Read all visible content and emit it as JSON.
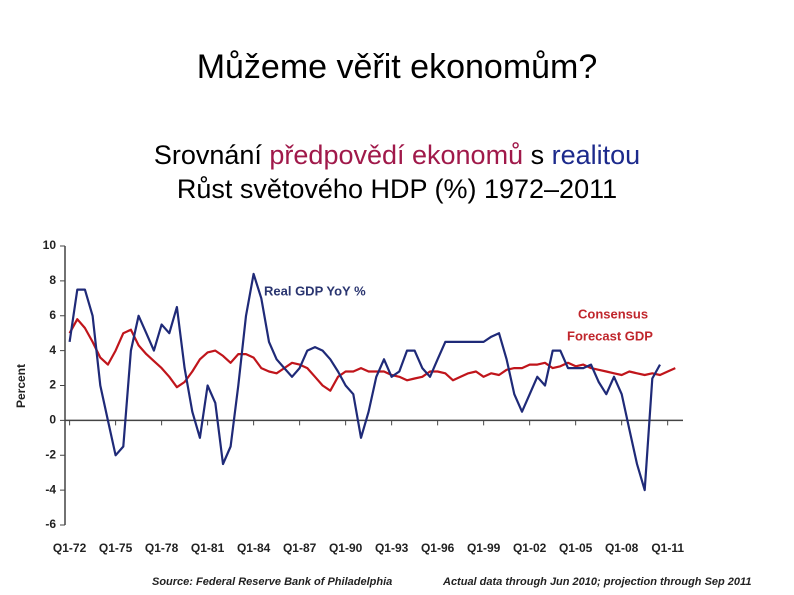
{
  "slide": {
    "title": "Můžeme věřit ekonomům?",
    "subtitle_parts": [
      "Srovnání",
      "předpovědí ekonomů",
      "s",
      "realitou"
    ],
    "subtitle_line2": "Růst světového HDP (%) 1972–2011"
  },
  "chart_data": {
    "type": "line",
    "y_label": "Percent",
    "annotations": [
      "Real GDP YoY %",
      "Consensus",
      "Forecast GDP"
    ],
    "source": "Source: Federal Reserve Bank of Philadelphia",
    "note": "Actual data through Jun 2010; projection through Sep 2011",
    "xlim": [
      1971.7,
      2012.0
    ],
    "ylim": [
      -6,
      10
    ],
    "yticks": [
      -6,
      -4,
      -2,
      0,
      2,
      4,
      6,
      8,
      10
    ],
    "xticks": [
      {
        "value": 1972,
        "label": "Q1-72"
      },
      {
        "value": 1975,
        "label": "Q1-75"
      },
      {
        "value": 1978,
        "label": "Q1-78"
      },
      {
        "value": 1981,
        "label": "Q1-81"
      },
      {
        "value": 1984,
        "label": "Q1-84"
      },
      {
        "value": 1987,
        "label": "Q1-87"
      },
      {
        "value": 1990,
        "label": "Q1-90"
      },
      {
        "value": 1993,
        "label": "Q1-93"
      },
      {
        "value": 1996,
        "label": "Q1-96"
      },
      {
        "value": 1999,
        "label": "Q1-99"
      },
      {
        "value": 2002,
        "label": "Q1-02"
      },
      {
        "value": 2005,
        "label": "Q1-05"
      },
      {
        "value": 2008,
        "label": "Q1-08"
      },
      {
        "value": 2011,
        "label": "Q1-11"
      }
    ],
    "x": [
      1972,
      1972.5,
      1973,
      1973.5,
      1974,
      1974.5,
      1975,
      1975.5,
      1976,
      1976.5,
      1977,
      1977.5,
      1978,
      1978.5,
      1979,
      1979.5,
      1980,
      1980.5,
      1981,
      1981.5,
      1982,
      1982.5,
      1983,
      1983.5,
      1984,
      1984.5,
      1985,
      1985.5,
      1986,
      1986.5,
      1987,
      1987.5,
      1988,
      1988.5,
      1989,
      1989.5,
      1990,
      1990.5,
      1991,
      1991.5,
      1992,
      1992.5,
      1993,
      1993.5,
      1994,
      1994.5,
      1995,
      1995.5,
      1996,
      1996.5,
      1997,
      1997.5,
      1998,
      1998.5,
      1999,
      1999.5,
      2000,
      2000.5,
      2001,
      2001.5,
      2002,
      2002.5,
      2003,
      2003.5,
      2004,
      2004.5,
      2005,
      2005.5,
      2006,
      2006.5,
      2007,
      2007.5,
      2008,
      2008.5,
      2009,
      2009.5,
      2010,
      2010.5,
      2011,
      2011.5
    ],
    "series": [
      {
        "color": "#1f2a78",
        "values": [
          4.5,
          7.5,
          7.5,
          6,
          2,
          0,
          -2,
          -1.5,
          4,
          6,
          5,
          4,
          5.5,
          5,
          6.5,
          3,
          0.5,
          -1,
          2,
          1,
          -2.5,
          -1.5,
          2,
          6,
          8.4,
          7,
          4.5,
          3.5,
          3,
          2.5,
          3,
          4,
          4.2,
          4,
          3.5,
          2.8,
          2,
          1.5,
          -1,
          0.5,
          2.5,
          3.5,
          2.5,
          2.8,
          4,
          4,
          3,
          2.5,
          3.5,
          4.5,
          4.5,
          4.5,
          4.5,
          4.5,
          4.5,
          4.8,
          5,
          3.5,
          1.5,
          0.5,
          1.5,
          2.5,
          2,
          4,
          4,
          3,
          3,
          3,
          3.2,
          2.2,
          1.5,
          2.5,
          1.5,
          -0.5,
          -2.5,
          -4,
          2.4,
          3.2,
          null,
          null
        ]
      },
      {
        "color": "#c0151b",
        "values": [
          5,
          5.8,
          5.3,
          4.5,
          3.6,
          3.2,
          4,
          5,
          5.2,
          4.3,
          3.8,
          3.4,
          3,
          2.5,
          1.9,
          2.2,
          2.8,
          3.5,
          3.9,
          4,
          3.7,
          3.3,
          3.8,
          3.8,
          3.6,
          3,
          2.8,
          2.7,
          3,
          3.3,
          3.2,
          3,
          2.5,
          2,
          1.7,
          2.5,
          2.8,
          2.8,
          3,
          2.8,
          2.8,
          2.8,
          2.6,
          2.5,
          2.3,
          2.4,
          2.5,
          2.8,
          2.8,
          2.7,
          2.3,
          2.5,
          2.7,
          2.8,
          2.5,
          2.7,
          2.6,
          2.9,
          3,
          3,
          3.2,
          3.2,
          3.3,
          3,
          3.1,
          3.3,
          3.1,
          3.2,
          3,
          2.9,
          2.8,
          2.7,
          2.6,
          2.8,
          2.7,
          2.6,
          2.7,
          2.6,
          2.8,
          3
        ]
      }
    ]
  }
}
